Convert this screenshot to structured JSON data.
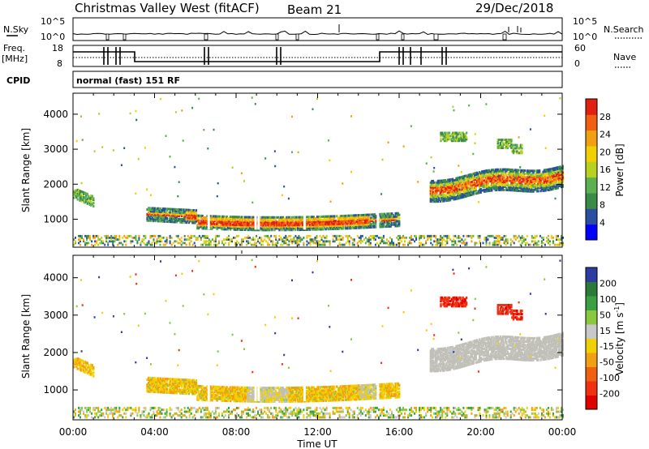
{
  "header": {
    "title": "Christmas Valley West (fitACF)",
    "beam": "Beam 21",
    "date": "29/Dec/2018"
  },
  "strip_panels": {
    "nsky_label": "N.Sky",
    "nsearch_label": "N.Search",
    "nsky_ticks": [
      "10^5",
      "10^0"
    ],
    "nsearch_ticks": [
      "10^5",
      "10^0"
    ],
    "freq_label_1": "Freq.",
    "freq_label_2": "[MHz]",
    "freq_ticks": [
      "18",
      "8"
    ],
    "nave_label": "Nave",
    "nave_ticks": [
      "60",
      "0"
    ],
    "cpid_label": "CPID",
    "cpid_value": "normal (fast) 151 RF"
  },
  "colors": {
    "power_scale": [
      "#0000ff",
      "#2b4fa0",
      "#3a8a4a",
      "#5db050",
      "#b8d020",
      "#f0d000",
      "#f0a010",
      "#f06010",
      "#e02010"
    ],
    "velocity_scale": [
      "#2c3ca0",
      "#2b7a3a",
      "#3aa040",
      "#8ac840",
      "#c8c8c8",
      "#f0d000",
      "#f0a010",
      "#f06010",
      "#f03010",
      "#e00000"
    ],
    "ground_scatter": "#c0c0b8"
  },
  "chart_data": [
    {
      "type": "heatmap",
      "name": "power",
      "xlabel": "",
      "ylabel": "Slant Range [km]",
      "xlim": [
        0,
        24
      ],
      "ylim": [
        200,
        4600
      ],
      "x_ticks": [],
      "y_ticks": [
        "1000",
        "2000",
        "3000",
        "4000"
      ],
      "colorbar_label": "Power [dB]",
      "colorbar_ticks": [
        "28",
        "24",
        "20",
        "16",
        "12",
        "8",
        "4"
      ],
      "features": [
        {
          "desc": "Main E/F band",
          "t_start": 3.6,
          "t_end": 16.0,
          "range_km": [
            700,
            1300
          ]
        },
        {
          "desc": "Early echoes",
          "t_start": 0.0,
          "t_end": 1.0,
          "range_km": [
            1500,
            1900
          ]
        },
        {
          "desc": "Evening F band",
          "t_start": 17.5,
          "t_end": 24.0,
          "range_km": [
            1600,
            2600
          ]
        },
        {
          "desc": "Upper patches",
          "t_start": 18.0,
          "t_end": 22.0,
          "range_km": [
            3000,
            3500
          ]
        }
      ]
    },
    {
      "type": "heatmap",
      "name": "velocity",
      "xlabel": "Time UT",
      "ylabel": "Slant Range [km]",
      "xlim": [
        0,
        24
      ],
      "ylim": [
        200,
        4600
      ],
      "x_ticks": [
        "00:00",
        "04:00",
        "08:00",
        "12:00",
        "16:00",
        "20:00",
        "00:00"
      ],
      "y_ticks": [
        "1000",
        "2000",
        "3000",
        "4000"
      ],
      "colorbar_label": "Velocity [m s",
      "colorbar_label_sup": "-1",
      "colorbar_label_end": "]",
      "colorbar_ticks": [
        "200",
        "100",
        "50",
        "15",
        "-15",
        "-50",
        "-100",
        "-200"
      ]
    }
  ]
}
